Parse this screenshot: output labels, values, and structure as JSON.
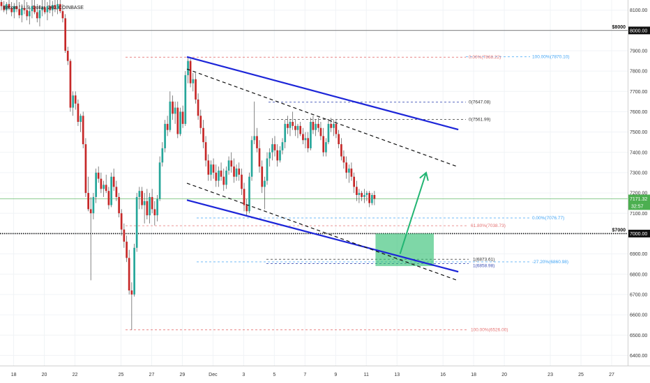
{
  "chart_data": {
    "type": "candlestick",
    "title": "Bitcoin / U.S. Dollar, 240, COINBASE",
    "ylim": [
      6350,
      8150
    ],
    "y_ticks": [
      6400,
      6500,
      6600,
      6700,
      6800,
      6900,
      7000,
      7100,
      7200,
      7300,
      7400,
      7500,
      7600,
      7700,
      7800,
      7900,
      8000,
      8100
    ],
    "y_tick_labels": [
      "6400.00",
      "6500.00",
      "6600.00",
      "6700.00",
      "6800.00",
      "6900.00",
      "7000.00",
      "7100.00",
      "7200.00",
      "7300.00",
      "7400.00",
      "7500.00",
      "7600.00",
      "7700.00",
      "7800.00",
      "7900.00",
      "8000.00",
      "8100.00"
    ],
    "x_ticks": [
      {
        "day": 18,
        "label": "18"
      },
      {
        "day": 20,
        "label": "20"
      },
      {
        "day": 22,
        "label": "22"
      },
      {
        "day": 25,
        "label": "25"
      },
      {
        "day": 27,
        "label": "27"
      },
      {
        "day": 29,
        "label": "29"
      },
      {
        "day": 31,
        "label": "Dec"
      },
      {
        "day": 33,
        "label": "3"
      },
      {
        "day": 35,
        "label": "5"
      },
      {
        "day": 37,
        "label": "7"
      },
      {
        "day": 39,
        "label": "9"
      },
      {
        "day": 41,
        "label": "11"
      },
      {
        "day": 43,
        "label": "13"
      },
      {
        "day": 46,
        "label": "16"
      },
      {
        "day": 48,
        "label": "18"
      },
      {
        "day": 50,
        "label": "20"
      },
      {
        "day": 53,
        "label": "23"
      },
      {
        "day": 55,
        "label": "25"
      },
      {
        "day": 57,
        "label": "27"
      }
    ],
    "x_range": [
      17.2,
      58.0
    ],
    "key_levels": [
      {
        "price": 8000,
        "label": "$8000",
        "value_label": "8000.00"
      },
      {
        "price": 7000,
        "label": "$7000",
        "value_label": "7000.00"
      }
    ],
    "current_price": {
      "price": 7171.32,
      "value_label": "7171.32",
      "countdown": "32:57"
    },
    "fib_upper": [
      {
        "price": 7868.22,
        "label": "0.00%(7868.22)"
      },
      {
        "price": 7870.1,
        "label": "100.00%(7870.10)"
      },
      {
        "price": 7647.08,
        "label": "0(7647.08)"
      },
      {
        "price": 7561.99,
        "label": "0(7561.99)"
      }
    ],
    "fib_lower": [
      {
        "price": 7076.77,
        "label": "0.00%(7076.77)"
      },
      {
        "price": 7038.73,
        "label": "61.80%(7038.73)"
      },
      {
        "price": 6873.61,
        "label": "1(6873.61)"
      },
      {
        "price": 6858.98,
        "label": "1(6858.98)"
      },
      {
        "price": 6860.98,
        "label": "-27.20%(6860.98)"
      },
      {
        "price": 6526.0,
        "label": "100.00%(6526.00)"
      }
    ],
    "candles": [
      [
        17.2,
        8140,
        8150,
        8100,
        8120
      ],
      [
        17.37,
        8120,
        8145,
        8090,
        8100
      ],
      [
        17.53,
        8100,
        8140,
        8080,
        8130
      ],
      [
        17.7,
        8130,
        8150,
        8100,
        8110
      ],
      [
        17.87,
        8110,
        8140,
        8070,
        8090
      ],
      [
        18.03,
        8090,
        8135,
        8060,
        8120
      ],
      [
        18.2,
        8120,
        8150,
        8090,
        8105
      ],
      [
        18.37,
        8105,
        8140,
        8060,
        8075
      ],
      [
        18.53,
        8075,
        8130,
        8040,
        8110
      ],
      [
        18.7,
        8110,
        8150,
        8080,
        8100
      ],
      [
        18.87,
        8100,
        8140,
        8050,
        8070
      ],
      [
        19.03,
        8070,
        8120,
        8030,
        8095
      ],
      [
        19.2,
        8095,
        8150,
        8060,
        8120
      ],
      [
        19.37,
        8120,
        8150,
        8080,
        8090
      ],
      [
        19.53,
        8090,
        8130,
        8040,
        8060
      ],
      [
        19.7,
        8060,
        8120,
        8020,
        8100
      ],
      [
        19.87,
        8100,
        8150,
        8070,
        8115
      ],
      [
        20.03,
        8115,
        8150,
        8080,
        8090
      ],
      [
        20.2,
        8090,
        8140,
        8050,
        8120
      ],
      [
        20.37,
        8120,
        8150,
        8085,
        8100
      ],
      [
        20.53,
        8100,
        8145,
        8070,
        8125
      ],
      [
        20.7,
        8125,
        8150,
        8090,
        8105
      ],
      [
        20.87,
        8105,
        8150,
        8080,
        8130
      ],
      [
        21.03,
        8130,
        8150,
        8085,
        8095
      ],
      [
        21.2,
        8095,
        8130,
        8040,
        8060
      ],
      [
        21.37,
        8060,
        8080,
        7890,
        7900
      ],
      [
        21.53,
        7900,
        7920,
        7830,
        7850
      ],
      [
        21.7,
        7850,
        7860,
        7600,
        7620
      ],
      [
        21.87,
        7620,
        7700,
        7580,
        7680
      ],
      [
        22.03,
        7680,
        7700,
        7610,
        7640
      ],
      [
        22.2,
        7640,
        7660,
        7530,
        7550
      ],
      [
        22.37,
        7550,
        7590,
        7500,
        7580
      ],
      [
        22.53,
        7580,
        7600,
        7420,
        7440
      ],
      [
        22.7,
        7440,
        7470,
        7180,
        7200
      ],
      [
        22.87,
        7200,
        7280,
        7110,
        7120
      ],
      [
        23.03,
        7120,
        7180,
        6770,
        7100
      ],
      [
        23.2,
        7100,
        7200,
        7070,
        7180
      ],
      [
        23.37,
        7180,
        7320,
        7150,
        7300
      ],
      [
        23.53,
        7300,
        7330,
        7250,
        7270
      ],
      [
        23.7,
        7270,
        7300,
        7200,
        7220
      ],
      [
        23.87,
        7220,
        7260,
        7180,
        7240
      ],
      [
        24.03,
        7240,
        7290,
        7200,
        7210
      ],
      [
        24.2,
        7210,
        7230,
        7120,
        7140
      ],
      [
        24.37,
        7140,
        7300,
        7130,
        7280
      ],
      [
        24.53,
        7280,
        7320,
        7210,
        7230
      ],
      [
        24.7,
        7230,
        7260,
        7160,
        7180
      ],
      [
        24.87,
        7180,
        7200,
        7080,
        7100
      ],
      [
        25.03,
        7100,
        7120,
        6990,
        7020
      ],
      [
        25.2,
        7020,
        7050,
        6930,
        6960
      ],
      [
        25.37,
        6960,
        6990,
        6860,
        6880
      ],
      [
        25.53,
        6880,
        6920,
        6700,
        6720
      ],
      [
        25.7,
        6720,
        6760,
        6526,
        6700
      ],
      [
        25.87,
        6700,
        6950,
        6690,
        6930
      ],
      [
        26.03,
        6930,
        7200,
        6910,
        7180
      ],
      [
        26.2,
        7180,
        7230,
        7120,
        7210
      ],
      [
        26.37,
        7210,
        7230,
        7120,
        7140
      ],
      [
        26.53,
        7140,
        7200,
        7050,
        7160
      ],
      [
        26.7,
        7160,
        7220,
        7070,
        7090
      ],
      [
        26.87,
        7090,
        7200,
        7050,
        7180
      ],
      [
        27.03,
        7180,
        7220,
        7100,
        7120
      ],
      [
        27.2,
        7120,
        7160,
        7040,
        7090
      ],
      [
        27.37,
        7090,
        7190,
        7060,
        7170
      ],
      [
        27.53,
        7170,
        7380,
        7160,
        7350
      ],
      [
        27.7,
        7350,
        7450,
        7330,
        7420
      ],
      [
        27.87,
        7420,
        7560,
        7400,
        7540
      ],
      [
        28.03,
        7540,
        7580,
        7480,
        7510
      ],
      [
        28.2,
        7510,
        7700,
        7500,
        7650
      ],
      [
        28.37,
        7650,
        7680,
        7560,
        7590
      ],
      [
        28.53,
        7590,
        7650,
        7540,
        7620
      ],
      [
        28.7,
        7620,
        7650,
        7470,
        7490
      ],
      [
        28.87,
        7490,
        7620,
        7480,
        7600
      ],
      [
        29.03,
        7600,
        7630,
        7520,
        7540
      ],
      [
        29.2,
        7540,
        7800,
        7530,
        7780
      ],
      [
        29.37,
        7780,
        7868,
        7740,
        7850
      ],
      [
        29.53,
        7850,
        7860,
        7720,
        7740
      ],
      [
        29.7,
        7740,
        7790,
        7700,
        7760
      ],
      [
        29.87,
        7760,
        7790,
        7640,
        7660
      ],
      [
        30.03,
        7660,
        7690,
        7560,
        7580
      ],
      [
        30.2,
        7580,
        7610,
        7490,
        7520
      ],
      [
        30.37,
        7520,
        7560,
        7420,
        7450
      ],
      [
        30.53,
        7450,
        7480,
        7330,
        7360
      ],
      [
        30.7,
        7360,
        7390,
        7260,
        7290
      ],
      [
        30.87,
        7290,
        7360,
        7260,
        7340
      ],
      [
        31.03,
        7340,
        7370,
        7270,
        7300
      ],
      [
        31.2,
        7300,
        7340,
        7230,
        7260
      ],
      [
        31.37,
        7260,
        7330,
        7230,
        7310
      ],
      [
        31.53,
        7310,
        7350,
        7260,
        7280
      ],
      [
        31.7,
        7280,
        7320,
        7210,
        7240
      ],
      [
        31.87,
        7240,
        7330,
        7220,
        7310
      ],
      [
        32.03,
        7310,
        7380,
        7290,
        7360
      ],
      [
        32.2,
        7360,
        7400,
        7300,
        7330
      ],
      [
        32.37,
        7330,
        7370,
        7250,
        7280
      ],
      [
        32.53,
        7280,
        7340,
        7260,
        7320
      ],
      [
        32.7,
        7320,
        7350,
        7260,
        7290
      ],
      [
        32.87,
        7290,
        7320,
        7190,
        7220
      ],
      [
        33.03,
        7220,
        7250,
        7110,
        7140
      ],
      [
        33.2,
        7140,
        7170,
        7086,
        7110
      ],
      [
        33.37,
        7110,
        7300,
        7100,
        7280
      ],
      [
        33.53,
        7280,
        7480,
        7260,
        7460
      ],
      [
        33.7,
        7460,
        7650,
        7440,
        7480
      ],
      [
        33.87,
        7480,
        7520,
        7400,
        7420
      ],
      [
        34.03,
        7420,
        7460,
        7300,
        7330
      ],
      [
        34.2,
        7330,
        7360,
        7200,
        7230
      ],
      [
        34.37,
        7230,
        7280,
        7120,
        7260
      ],
      [
        34.53,
        7260,
        7400,
        7240,
        7370
      ],
      [
        34.7,
        7370,
        7420,
        7330,
        7400
      ],
      [
        34.87,
        7400,
        7470,
        7360,
        7440
      ],
      [
        35.03,
        7440,
        7480,
        7380,
        7410
      ],
      [
        35.2,
        7410,
        7440,
        7330,
        7360
      ],
      [
        35.37,
        7360,
        7430,
        7350,
        7410
      ],
      [
        35.53,
        7410,
        7470,
        7390,
        7450
      ],
      [
        35.7,
        7450,
        7560,
        7420,
        7540
      ],
      [
        35.87,
        7540,
        7580,
        7490,
        7520
      ],
      [
        36.03,
        7520,
        7560,
        7480,
        7550
      ],
      [
        36.2,
        7550,
        7600,
        7510,
        7530
      ],
      [
        36.37,
        7530,
        7560,
        7480,
        7510
      ],
      [
        36.53,
        7510,
        7540,
        7470,
        7530
      ],
      [
        36.7,
        7530,
        7550,
        7480,
        7490
      ],
      [
        36.87,
        7490,
        7520,
        7440,
        7460
      ],
      [
        37.03,
        7460,
        7500,
        7420,
        7470
      ],
      [
        37.2,
        7470,
        7500,
        7400,
        7420
      ],
      [
        37.37,
        7420,
        7570,
        7410,
        7550
      ],
      [
        37.53,
        7550,
        7580,
        7490,
        7510
      ],
      [
        37.7,
        7510,
        7560,
        7480,
        7540
      ],
      [
        37.87,
        7540,
        7570,
        7500,
        7520
      ],
      [
        38.03,
        7520,
        7550,
        7460,
        7480
      ],
      [
        38.2,
        7480,
        7520,
        7380,
        7400
      ],
      [
        38.37,
        7400,
        7470,
        7380,
        7450
      ],
      [
        38.53,
        7450,
        7560,
        7440,
        7540
      ],
      [
        38.7,
        7540,
        7570,
        7500,
        7520
      ],
      [
        38.87,
        7520,
        7560,
        7480,
        7540
      ],
      [
        39.03,
        7540,
        7560,
        7470,
        7490
      ],
      [
        39.2,
        7490,
        7510,
        7420,
        7440
      ],
      [
        39.37,
        7440,
        7470,
        7360,
        7380
      ],
      [
        39.53,
        7380,
        7410,
        7320,
        7350
      ],
      [
        39.7,
        7350,
        7380,
        7270,
        7300
      ],
      [
        39.87,
        7300,
        7340,
        7250,
        7320
      ],
      [
        40.03,
        7320,
        7350,
        7260,
        7280
      ],
      [
        40.2,
        7280,
        7300,
        7200,
        7230
      ],
      [
        40.37,
        7230,
        7260,
        7160,
        7190
      ],
      [
        40.53,
        7190,
        7220,
        7150,
        7200
      ],
      [
        40.7,
        7200,
        7210,
        7160,
        7180
      ],
      [
        40.87,
        7180,
        7220,
        7150,
        7190
      ],
      [
        41.03,
        7190,
        7210,
        7160,
        7200
      ],
      [
        41.2,
        7200,
        7210,
        7130,
        7150
      ],
      [
        41.37,
        7150,
        7200,
        7140,
        7190
      ],
      [
        41.53,
        7190,
        7210,
        7140,
        7171
      ]
    ],
    "channel_lines": [
      {
        "role": "channel-upper",
        "style": "solid",
        "color": "#1c25d8",
        "points": [
          [
            29.3,
            7870
          ],
          [
            47.0,
            7512
          ]
        ]
      },
      {
        "role": "channel-lower",
        "style": "solid",
        "color": "#1c25d8",
        "points": [
          [
            29.3,
            7165
          ],
          [
            47.0,
            6812
          ]
        ]
      },
      {
        "role": "mid-upper",
        "style": "dashed",
        "color": "#111111",
        "points": [
          [
            29.3,
            7810
          ],
          [
            47.0,
            7328
          ]
        ]
      },
      {
        "role": "mid-lower",
        "style": "dashed",
        "color": "#111111",
        "points": [
          [
            29.3,
            7248
          ],
          [
            47.0,
            6768
          ]
        ]
      }
    ],
    "target_zone": {
      "x": [
        41.6,
        45.4
      ],
      "y": [
        6840,
        7000
      ],
      "color": "#2fbf71"
    },
    "projection_arrow": {
      "from": [
        43.2,
        6900
      ],
      "to": [
        44.9,
        7300
      ],
      "color": "#22b573"
    }
  }
}
